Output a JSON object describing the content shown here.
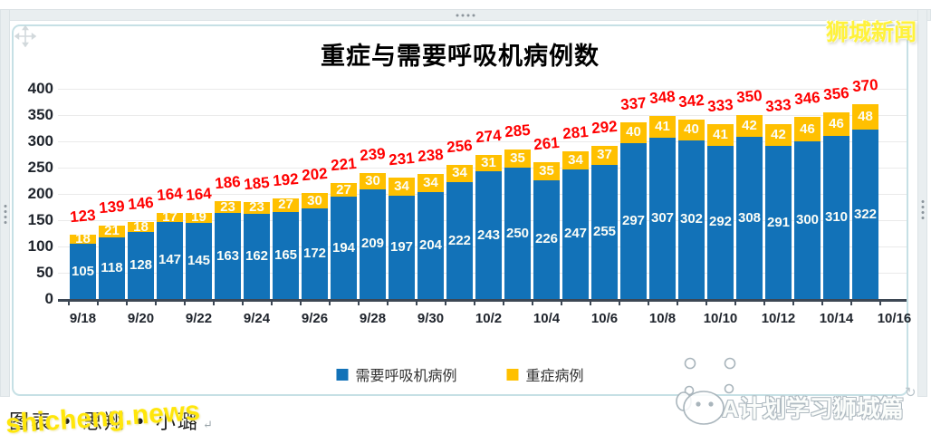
{
  "page": {
    "watermark_top_right": "狮城新闻",
    "watermark_shicheng": "shicheng.news",
    "watermark_bottom_right": "A计划学习狮城篇",
    "credit_line": "图表 • 思翔 • 小璐",
    "return_mark": "↵",
    "rotate_glyph": "↻"
  },
  "colors": {
    "ventilator_blue": "#1272B8",
    "severe_yellow": "#FFC000",
    "total_red": "#FF0000",
    "axis_text": "#1F242C",
    "axis_line": "#3D4754",
    "gridline": "#EAEAEA",
    "frame_border": "#C6E0E5"
  },
  "chart_data": {
    "type": "bar",
    "stacked": true,
    "title": "重症与需要呼吸机病例数",
    "x_tick_labels": [
      "9/18",
      "9/20",
      "9/22",
      "9/24",
      "9/26",
      "9/28",
      "9/30",
      "10/2",
      "10/4",
      "10/6",
      "10/8",
      "10/10",
      "10/12",
      "10/14",
      "10/16"
    ],
    "y_ticks": [
      400,
      350,
      300,
      250,
      200,
      150,
      100,
      50,
      0
    ],
    "ylim": [
      0,
      400
    ],
    "grid": true,
    "legend_position": "bottom",
    "series": [
      {
        "name": "需要呼吸机病例",
        "color": "#1272B8",
        "values": [
          105,
          118,
          128,
          147,
          145,
          163,
          162,
          165,
          172,
          194,
          209,
          197,
          204,
          222,
          243,
          250,
          226,
          247,
          255,
          297,
          307,
          302,
          292,
          308,
          291,
          300,
          310,
          322
        ]
      },
      {
        "name": "重症病例",
        "color": "#FFC000",
        "values": [
          18,
          21,
          18,
          17,
          19,
          23,
          23,
          27,
          30,
          27,
          30,
          34,
          34,
          34,
          31,
          35,
          35,
          34,
          37,
          40,
          41,
          40,
          41,
          42,
          42,
          46,
          46,
          48
        ]
      }
    ],
    "totals": [
      123,
      139,
      146,
      164,
      164,
      186,
      185,
      192,
      202,
      221,
      239,
      231,
      238,
      256,
      274,
      285,
      261,
      281,
      292,
      337,
      348,
      342,
      333,
      350,
      333,
      346,
      356,
      370
    ]
  }
}
